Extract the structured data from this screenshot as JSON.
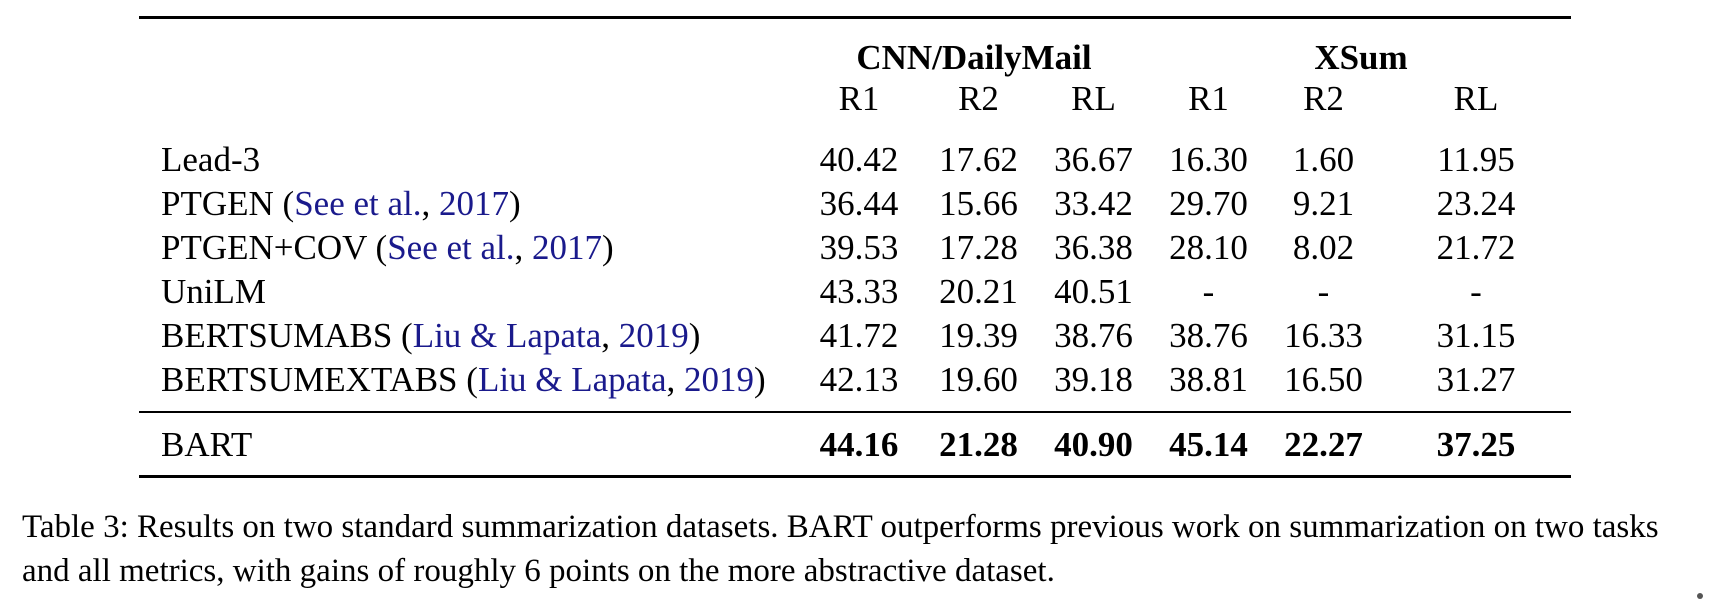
{
  "table": {
    "groups": [
      "CNN/DailyMail",
      "XSum"
    ],
    "metrics": [
      "R1",
      "R2",
      "RL",
      "R1",
      "R2",
      "RL"
    ],
    "rows": [
      {
        "model": "Lead-3",
        "cite_author": "",
        "cite_year": "",
        "values": [
          "40.42",
          "17.62",
          "36.67",
          "16.30",
          "1.60",
          "11.95"
        ]
      },
      {
        "model": "PTGEN",
        "cite_author": "See et al.",
        "cite_year": "2017",
        "values": [
          "36.44",
          "15.66",
          "33.42",
          "29.70",
          "9.21",
          "23.24"
        ]
      },
      {
        "model": "PTGEN+COV",
        "cite_author": "See et al.",
        "cite_year": "2017",
        "values": [
          "39.53",
          "17.28",
          "36.38",
          "28.10",
          "8.02",
          "21.72"
        ]
      },
      {
        "model": "UniLM",
        "cite_author": "",
        "cite_year": "",
        "values": [
          "43.33",
          "20.21",
          "40.51",
          "-",
          "-",
          "-"
        ]
      },
      {
        "model": "BERTSUMABS",
        "cite_author": "Liu & Lapata",
        "cite_year": "2019",
        "values": [
          "41.72",
          "19.39",
          "38.76",
          "38.76",
          "16.33",
          "31.15"
        ]
      },
      {
        "model": "BERTSUMEXTABS",
        "cite_author": "Liu & Lapata",
        "cite_year": "2019",
        "values": [
          "42.13",
          "19.60",
          "39.18",
          "38.81",
          "16.50",
          "31.27"
        ]
      }
    ],
    "bart": {
      "model": "BART",
      "values": [
        "44.16",
        "21.28",
        "40.90",
        "45.14",
        "22.27",
        "37.25"
      ]
    }
  },
  "caption": "Table 3: Results on two standard summarization datasets. BART outperforms previous work on summarization on two tasks and all metrics, with gains of roughly 6 points on the more abstractive dataset.",
  "colors": {
    "citation": "#1a1a8c"
  }
}
